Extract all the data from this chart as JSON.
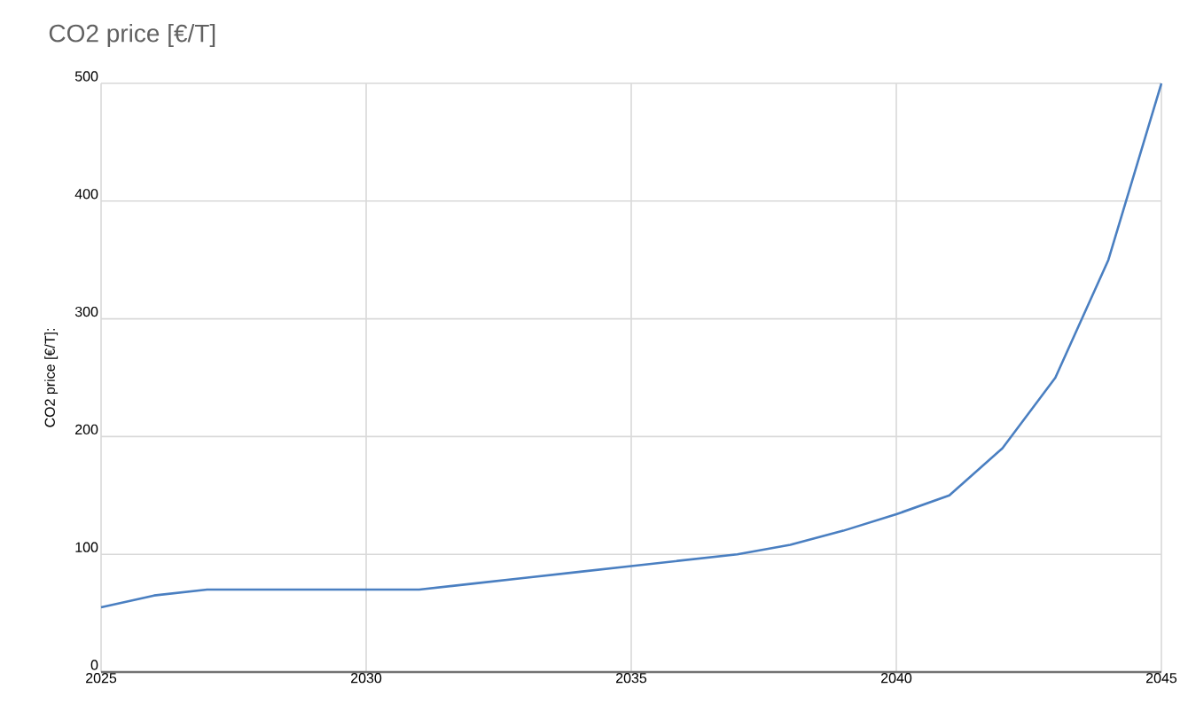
{
  "chart_data": {
    "type": "line",
    "title": "CO2 price [€/T]",
    "ylabel": "CO2 price [€/T]:",
    "x": [
      2025,
      2026,
      2027,
      2028,
      2029,
      2030,
      2031,
      2032,
      2033,
      2034,
      2035,
      2036,
      2037,
      2038,
      2039,
      2040,
      2041,
      2042,
      2043,
      2044,
      2045
    ],
    "series": [
      {
        "color": "#4a7fc1",
        "values": [
          55,
          65,
          70,
          70,
          70,
          70,
          70,
          75,
          80,
          85,
          90,
          95,
          100,
          108,
          120,
          134,
          150,
          190,
          250,
          350,
          500
        ]
      }
    ],
    "xlim": [
      2025,
      2045
    ],
    "ylim": [
      0,
      500
    ],
    "xticks": [
      2025,
      2030,
      2035,
      2040,
      2045
    ],
    "yticks": [
      0,
      100,
      200,
      300,
      400,
      500
    ],
    "grid": true
  }
}
